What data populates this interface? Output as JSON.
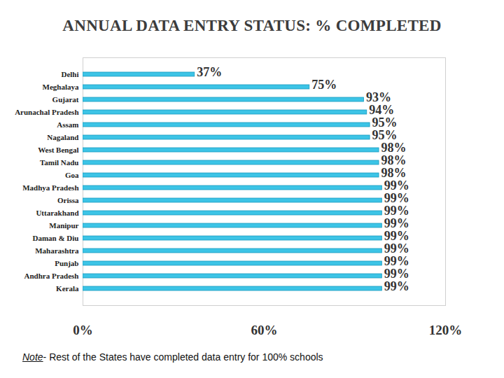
{
  "chart_data": {
    "type": "bar",
    "orientation": "horizontal",
    "title": "ANNUAL DATA ENTRY STATUS: % COMPLETED",
    "categories": [
      "Delhi",
      "Meghalaya",
      "Gujarat",
      "Arunachal Pradesh",
      "Assam",
      "Nagaland",
      "West Bengal",
      "Tamil Nadu",
      "Goa",
      "Madhya Pradesh",
      "Orissa",
      "Uttarakhand",
      "Manipur",
      "Daman & Diu",
      "Maharashtra",
      "Punjab",
      "Andhra Pradesh",
      "Kerala"
    ],
    "values": [
      37,
      75,
      93,
      94,
      95,
      95,
      98,
      98,
      98,
      99,
      99,
      99,
      99,
      99,
      99,
      99,
      99,
      99
    ],
    "value_labels": [
      "37%",
      "75%",
      "93%",
      "94%",
      "95%",
      "95%",
      "98%",
      "98%",
      "98%",
      "99%",
      "99%",
      "99%",
      "99%",
      "99%",
      "99%",
      "99%",
      "99%",
      "99%"
    ],
    "color": "#3cc4e6",
    "xlim": [
      0,
      120
    ],
    "xticks": [
      {
        "value": 0,
        "label": "0%"
      },
      {
        "value": 60,
        "label": "60%"
      },
      {
        "value": 120,
        "label": "120%"
      }
    ],
    "grid": false,
    "data_labels": true,
    "annotations": [
      "Note- Rest of the States have completed data entry for 100% schools"
    ]
  }
}
